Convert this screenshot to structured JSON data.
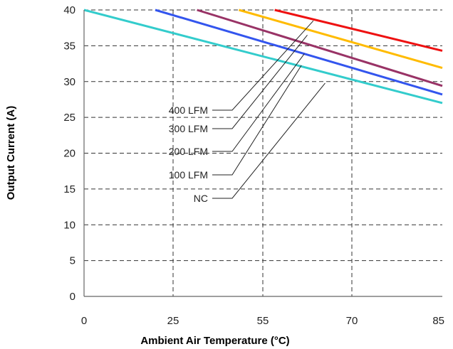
{
  "chart_data": {
    "type": "line",
    "title": "",
    "xlabel": "Ambient Air Temperature (°C)",
    "ylabel": "Output Current (A)",
    "x_ticks": [
      "0",
      "25",
      "55",
      "70",
      "85"
    ],
    "y_ticks": [
      "0",
      "5",
      "10",
      "15",
      "20",
      "25",
      "30",
      "35",
      "40"
    ],
    "ylim": [
      0,
      40
    ],
    "grid": true,
    "series": [
      {
        "name": "400 LFM",
        "color": "#ee1111",
        "points": [
          [
            57,
            40
          ],
          [
            85,
            34.3
          ]
        ]
      },
      {
        "name": "300 LFM",
        "color": "#ffbb00",
        "points": [
          [
            47,
            40
          ],
          [
            85,
            31.9
          ]
        ]
      },
      {
        "name": "200 LFM",
        "color": "#993366",
        "points": [
          [
            33,
            40
          ],
          [
            85,
            29.4
          ]
        ]
      },
      {
        "name": "100 LFM",
        "color": "#3355ee",
        "points": [
          [
            20,
            40
          ],
          [
            85,
            28.2
          ]
        ]
      },
      {
        "name": "NC",
        "color": "#33cccc",
        "points": [
          [
            0,
            40
          ],
          [
            85,
            27.0
          ]
        ]
      }
    ],
    "annotations": [
      {
        "text": "400 LFM",
        "series": "400 LFM"
      },
      {
        "text": "300 LFM",
        "series": "300 LFM"
      },
      {
        "text": "200 LFM",
        "series": "200 LFM"
      },
      {
        "text": "100 LFM",
        "series": "100 LFM"
      },
      {
        "text": "NC",
        "series": "NC"
      }
    ]
  }
}
